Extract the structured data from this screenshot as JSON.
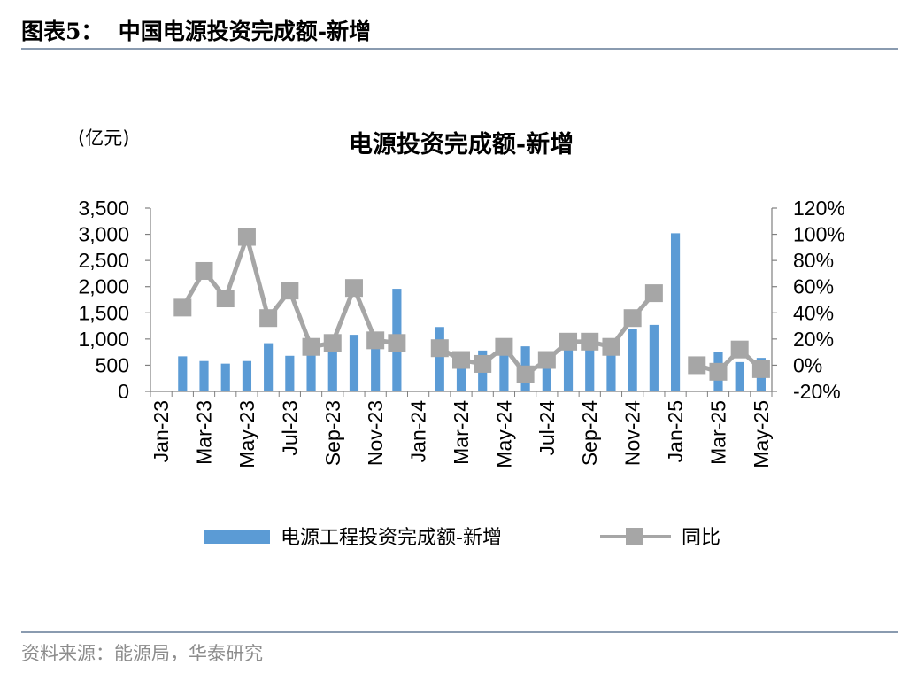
{
  "figure_title": "图表5：  中国电源投资完成额-新增",
  "source": "资料来源：能源局，华泰研究",
  "colors": {
    "bar": "#5b9bd5",
    "line": "#a6a6a6",
    "rule": "#8a9bb0",
    "source_text": "#8c8c8c"
  },
  "chart_data": {
    "type": "bar+line",
    "title": "电源投资完成额-新增",
    "y_left_unit": "(亿元)",
    "y_left_range": [
      0,
      3500
    ],
    "y_left_ticks": [
      "3,500",
      "3,000",
      "2,500",
      "2,000",
      "1,500",
      "1,000",
      "500",
      "0"
    ],
    "y_right_range": [
      -20,
      120
    ],
    "y_right_ticks": [
      "120%",
      "100%",
      "80%",
      "60%",
      "40%",
      "20%",
      "0%",
      "-20%"
    ],
    "x_tick_labels": [
      "Jan-23",
      "Mar-23",
      "May-23",
      "Jul-23",
      "Sep-23",
      "Nov-23",
      "Jan-24",
      "Mar-24",
      "May-24",
      "Jul-24",
      "Sep-24",
      "Nov-24",
      "Jan-25",
      "Mar-25",
      "May-25"
    ],
    "categories": [
      "Jan-23",
      "Feb-23",
      "Mar-23",
      "Apr-23",
      "May-23",
      "Jun-23",
      "Jul-23",
      "Aug-23",
      "Sep-23",
      "Oct-23",
      "Nov-23",
      "Dec-23",
      "Jan-24",
      "Feb-24",
      "Mar-24",
      "Apr-24",
      "May-24",
      "Jun-24",
      "Jul-24",
      "Aug-24",
      "Sep-24",
      "Oct-24",
      "Nov-24",
      "Dec-24",
      "Jan-25",
      "Feb-25",
      "Mar-25",
      "Apr-25",
      "May-25"
    ],
    "series": [
      {
        "name": "电源工程投资完成额-新增",
        "type": "bar",
        "axis": "left",
        "values": [
          null,
          670,
          580,
          530,
          580,
          920,
          680,
          860,
          940,
          1080,
          870,
          1960,
          null,
          1230,
          630,
          780,
          750,
          860,
          640,
          1020,
          870,
          1010,
          1200,
          1270,
          3020,
          null,
          750,
          560,
          640
        ]
      },
      {
        "name": "同比",
        "type": "line",
        "axis": "right",
        "values": [
          null,
          44,
          72,
          51,
          98,
          36,
          57,
          14,
          17,
          59,
          19,
          17,
          null,
          13,
          4,
          1,
          14,
          -7,
          4,
          18,
          18,
          14,
          36,
          55,
          null,
          0,
          -5,
          12,
          -3
        ]
      }
    ],
    "legend_position": "bottom"
  }
}
